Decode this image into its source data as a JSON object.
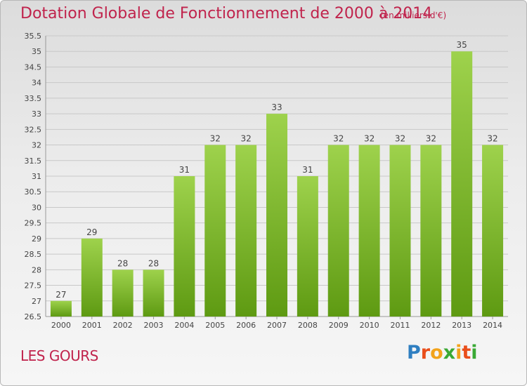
{
  "header": {
    "title": "Dotation Globale de Fonctionnement de 2000 à 2014",
    "unit": "(en milliers d'€)"
  },
  "footer": {
    "commune": "LES GOURS",
    "logo": {
      "text": "Proxiti",
      "letter_colors": [
        "#2f7fc1",
        "#e94e1b",
        "#f2a31b",
        "#3aa935",
        "#f2a31b",
        "#e94e1b",
        "#3aa935"
      ]
    }
  },
  "colors": {
    "bar_light": "#9ed24c",
    "bar_dark": "#5e9a12",
    "title": "#c0234c",
    "grid": "#c8c8c8"
  },
  "chart_data": {
    "type": "bar",
    "categories": [
      "2000",
      "2001",
      "2002",
      "2003",
      "2004",
      "2005",
      "2006",
      "2007",
      "2008",
      "2009",
      "2010",
      "2011",
      "2012",
      "2013",
      "2014"
    ],
    "values": [
      27,
      29,
      28,
      28,
      31,
      32,
      32,
      33,
      31,
      32,
      32,
      32,
      32,
      35,
      32
    ],
    "title": "Dotation Globale de Fonctionnement de 2000 à 2014",
    "ylim": [
      26.5,
      35.5
    ],
    "yticks": [
      "26.5",
      "27",
      "27.5",
      "28",
      "28.5",
      "29",
      "29.5",
      "30",
      "30.5",
      "31",
      "31.5",
      "32",
      "32.5",
      "33",
      "33.5",
      "34",
      "34.5",
      "35",
      "35.5"
    ],
    "grid": true,
    "legend": "none"
  }
}
